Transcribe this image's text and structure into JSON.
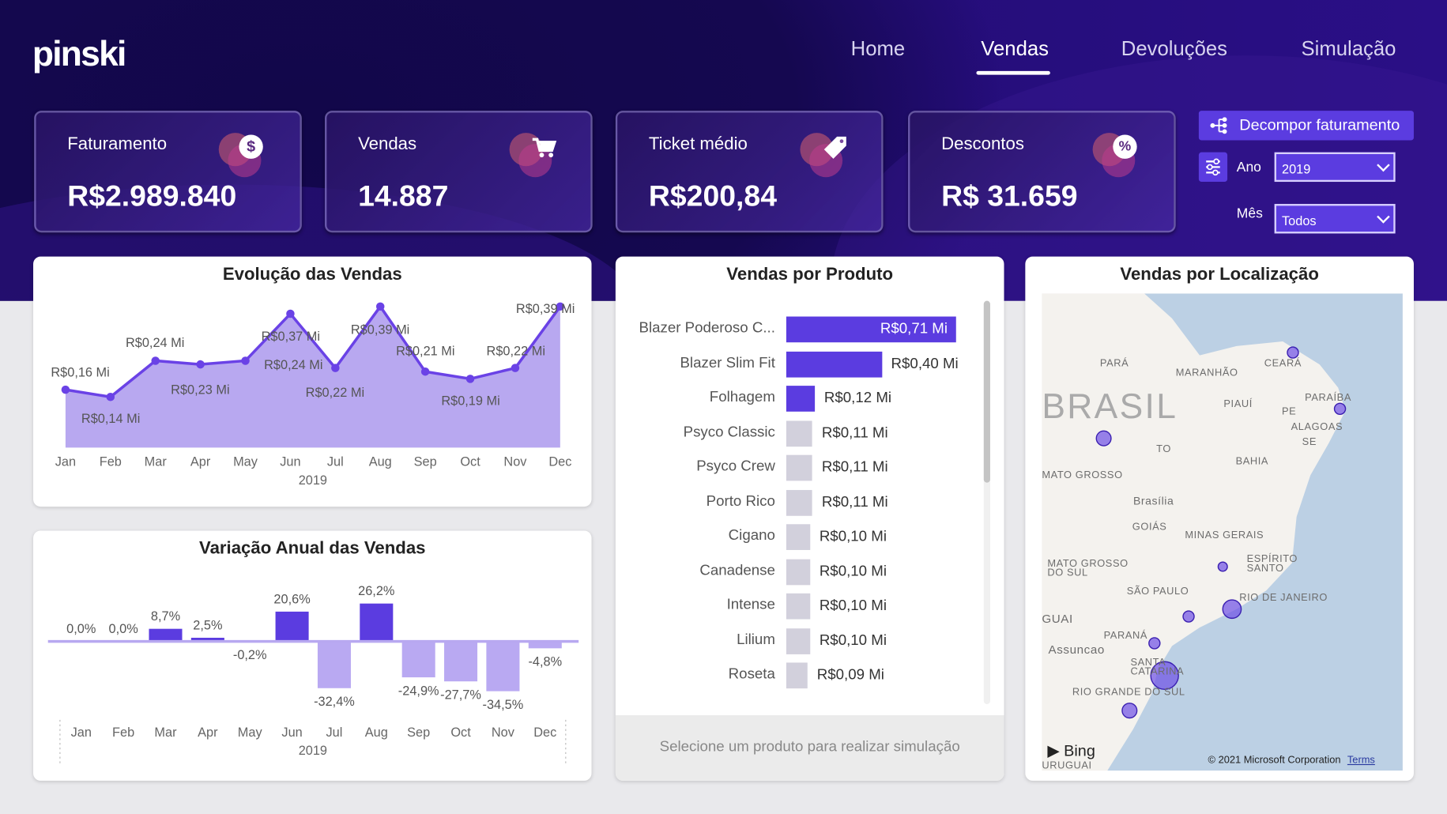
{
  "logo": "pinski",
  "nav": [
    {
      "label": "Home"
    },
    {
      "label": "Vendas",
      "active": true
    },
    {
      "label": "Devoluções"
    },
    {
      "label": "Simulação"
    }
  ],
  "kpis": [
    {
      "title": "Faturamento",
      "value": "R$2.989.840",
      "icon": "dollar-icon"
    },
    {
      "title": "Vendas",
      "value": "14.887",
      "icon": "cart-icon"
    },
    {
      "title": "Ticket médio",
      "value": "R$200,84",
      "icon": "tag-icon"
    },
    {
      "title": "Descontos",
      "value": "R$ 31.659",
      "icon": "discount-icon"
    }
  ],
  "decompose_label": "Decompor faturamento",
  "filters": {
    "ano_label": "Ano",
    "ano_value": "2019",
    "mes_label": "Mês",
    "mes_value": "Todos"
  },
  "colors": {
    "accent": "#5b3ce0",
    "area": "#b8a8f0",
    "negative": "#b9a9f2",
    "muted_bar": "#d2d0dc",
    "ocean": "#bcd0e4"
  },
  "chart_data": [
    {
      "type": "area",
      "title": "Evolução das Vendas",
      "xlabel": "2019",
      "categories": [
        "Jan",
        "Feb",
        "Mar",
        "Apr",
        "May",
        "Jun",
        "Jul",
        "Aug",
        "Sep",
        "Oct",
        "Nov",
        "Dec"
      ],
      "values": [
        0.16,
        0.14,
        0.24,
        0.23,
        0.24,
        0.37,
        0.22,
        0.39,
        0.21,
        0.19,
        0.22,
        0.39
      ],
      "labels": [
        "R$0,16 Mi",
        "R$0,14 Mi",
        "R$0,24 Mi",
        "R$0,23 Mi",
        "R$0,24 Mi",
        "R$0,37 Mi",
        "R$0,22 Mi",
        "R$0,39 Mi",
        "R$0,21 Mi",
        "R$0,19 Mi",
        "R$0,22 Mi",
        "R$0,39 Mi"
      ],
      "unit": "R$ Mi"
    },
    {
      "type": "bar",
      "title": "Variação Anual das Vendas",
      "xlabel": "2019",
      "categories": [
        "Jan",
        "Feb",
        "Mar",
        "Apr",
        "May",
        "Jun",
        "Jul",
        "Aug",
        "Sep",
        "Oct",
        "Nov",
        "Dec"
      ],
      "values": [
        0.0,
        0.0,
        8.7,
        2.5,
        -0.2,
        20.6,
        -32.4,
        26.2,
        -24.9,
        -27.7,
        -34.5,
        -4.8
      ],
      "labels": [
        "0,0%",
        "0,0%",
        "8,7%",
        "2,5%",
        "-0,2%",
        "20,6%",
        "-32,4%",
        "26,2%",
        "-24,9%",
        "-27,7%",
        "-34,5%",
        "-4,8%"
      ]
    },
    {
      "type": "bar",
      "orientation": "horizontal",
      "title": "Vendas por Produto",
      "categories": [
        "Blazer Poderoso C...",
        "Blazer Slim Fit",
        "Folhagem",
        "Psyco Classic",
        "Psyco Crew",
        "Porto Rico",
        "Cigano",
        "Canadense",
        "Intense",
        "Lilium",
        "Roseta"
      ],
      "values": [
        0.71,
        0.4,
        0.12,
        0.11,
        0.11,
        0.11,
        0.1,
        0.1,
        0.1,
        0.1,
        0.09
      ],
      "labels": [
        "R$0,71 Mi",
        "R$0,40 Mi",
        "R$0,12 Mi",
        "R$0,11 Mi",
        "R$0,11 Mi",
        "R$0,11 Mi",
        "R$0,10 Mi",
        "R$0,10 Mi",
        "R$0,10 Mi",
        "R$0,10 Mi",
        "R$0,09 Mi"
      ],
      "highlighted": 3
    }
  ],
  "product_footer": "Selecione um produto para realizar simulação",
  "map": {
    "title": "Vendas por Localização",
    "labels": [
      "PARÁ",
      "MARANHÃO",
      "CEARÁ",
      "BRASIL",
      "PIAUÍ",
      "PARAÍBA",
      "PE",
      "ALAGOAS",
      "SE",
      "TO",
      "BAHIA",
      "MATO GROSSO",
      "Brasília",
      "GOIÁS",
      "MINAS GERAIS",
      "ESPÍRITO SANTO",
      "MATO GROSSO DO SUL",
      "SÃO PAULO",
      "RIO DE JANEIRO",
      "GUAI",
      "PARANÁ",
      "Assuncao",
      "SANTA CATARINA",
      "RIO GRANDE DO SUL",
      "URUGUAI"
    ],
    "bing": "Bing",
    "attribution": "© 2021 Microsoft Corporation",
    "terms": "Terms"
  }
}
